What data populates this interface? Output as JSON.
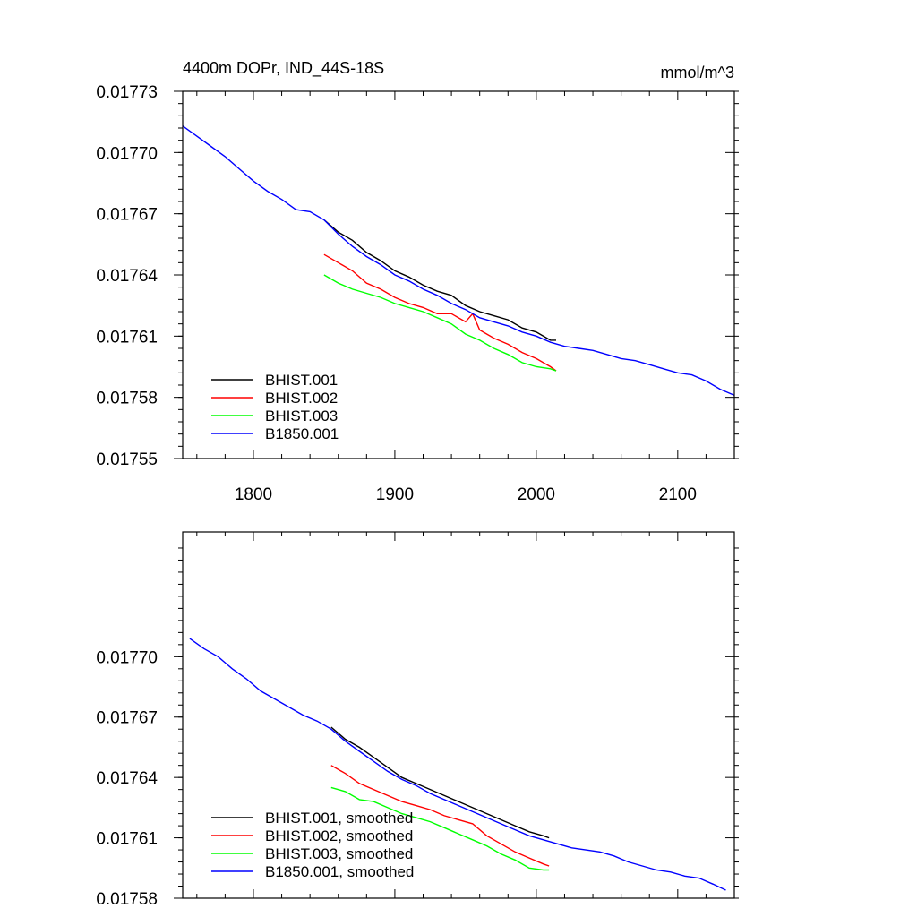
{
  "chart_data": [
    {
      "type": "line",
      "title": "4400m DOPr, IND_44S-18S",
      "units": "mmol/m^3",
      "xlim": [
        1750,
        2140
      ],
      "ylim": [
        0.01755,
        0.01773
      ],
      "xticks": [
        1800,
        1900,
        2000,
        2100
      ],
      "xtick_labels": [
        "1800",
        "1900",
        "2000",
        "2100"
      ],
      "yticks": [
        0.01755,
        0.01758,
        0.01761,
        0.01764,
        0.01767,
        0.0177,
        0.01773
      ],
      "ytick_labels": [
        "0.01755",
        "0.01758",
        "0.01761",
        "0.01764",
        "0.01767",
        "0.01770",
        "0.01773"
      ],
      "grid": false,
      "legend_position": "bottom-left",
      "series": [
        {
          "name": "BHIST.001",
          "color": "#000000",
          "x": [
            1850,
            1860,
            1870,
            1880,
            1890,
            1900,
            1910,
            1920,
            1930,
            1940,
            1950,
            1960,
            1970,
            1980,
            1990,
            2000,
            2010,
            2014
          ],
          "y": [
            0.017667,
            0.017661,
            0.017657,
            0.017651,
            0.017647,
            0.017642,
            0.017639,
            0.017635,
            0.017632,
            0.01763,
            0.017625,
            0.017622,
            0.01762,
            0.017618,
            0.017614,
            0.017612,
            0.017608,
            0.017608
          ]
        },
        {
          "name": "BHIST.002",
          "color": "#ff0000",
          "x": [
            1850,
            1860,
            1870,
            1880,
            1890,
            1900,
            1910,
            1920,
            1930,
            1940,
            1950,
            1955,
            1960,
            1970,
            1980,
            1990,
            2000,
            2010,
            2014
          ],
          "y": [
            0.01765,
            0.017646,
            0.017642,
            0.017636,
            0.017633,
            0.017629,
            0.017626,
            0.017624,
            0.017621,
            0.017621,
            0.017617,
            0.017621,
            0.017613,
            0.017609,
            0.017606,
            0.017602,
            0.017599,
            0.017595,
            0.017593
          ]
        },
        {
          "name": "BHIST.003",
          "color": "#00ff00",
          "x": [
            1850,
            1860,
            1870,
            1880,
            1890,
            1900,
            1910,
            1920,
            1930,
            1940,
            1950,
            1960,
            1970,
            1980,
            1990,
            2000,
            2010,
            2014
          ],
          "y": [
            0.01764,
            0.017636,
            0.017633,
            0.017631,
            0.017629,
            0.017626,
            0.017624,
            0.017622,
            0.017619,
            0.017616,
            0.017611,
            0.017608,
            0.017604,
            0.017601,
            0.017597,
            0.017595,
            0.017594,
            0.017593
          ]
        },
        {
          "name": "B1850.001",
          "color": "#0000ff",
          "x": [
            1750,
            1760,
            1770,
            1780,
            1790,
            1800,
            1810,
            1820,
            1830,
            1840,
            1850,
            1860,
            1870,
            1880,
            1890,
            1900,
            1910,
            1920,
            1930,
            1940,
            1950,
            1960,
            1970,
            1980,
            1990,
            2000,
            2010,
            2020,
            2030,
            2040,
            2050,
            2060,
            2070,
            2080,
            2090,
            2100,
            2110,
            2120,
            2130,
            2140
          ],
          "y": [
            0.017713,
            0.017708,
            0.017703,
            0.017698,
            0.017692,
            0.017686,
            0.017681,
            0.017677,
            0.017672,
            0.017671,
            0.017667,
            0.01766,
            0.017654,
            0.017649,
            0.017645,
            0.01764,
            0.017637,
            0.017633,
            0.01763,
            0.017626,
            0.017623,
            0.017619,
            0.017617,
            0.017615,
            0.017612,
            0.01761,
            0.017607,
            0.017605,
            0.017604,
            0.017603,
            0.017601,
            0.017599,
            0.017598,
            0.017596,
            0.017594,
            0.017592,
            0.017591,
            0.017588,
            0.017584,
            0.017581
          ]
        }
      ]
    },
    {
      "type": "line",
      "xlim": [
        1750,
        2140
      ],
      "ylim": [
        0.01758,
        0.017762
      ],
      "xticks": [
        1800,
        1900,
        2000,
        2100
      ],
      "yticks": [
        0.01758,
        0.01761,
        0.01764,
        0.01767,
        0.0177
      ],
      "ytick_labels": [
        "0.01758",
        "0.01761",
        "0.01764",
        "0.01767",
        "0.01770"
      ],
      "grid": false,
      "legend_position": "bottom-left",
      "series": [
        {
          "name": "BHIST.001, smoothed",
          "color": "#000000",
          "x": [
            1855,
            1865,
            1875,
            1885,
            1895,
            1905,
            1915,
            1925,
            1935,
            1945,
            1955,
            1965,
            1975,
            1985,
            1995,
            2005,
            2009
          ],
          "y": [
            0.017665,
            0.017659,
            0.017655,
            0.01765,
            0.017645,
            0.01764,
            0.017637,
            0.017634,
            0.017631,
            0.017628,
            0.017625,
            0.017622,
            0.017619,
            0.017616,
            0.017613,
            0.017611,
            0.01761
          ]
        },
        {
          "name": "BHIST.002, smoothed",
          "color": "#ff0000",
          "x": [
            1855,
            1865,
            1875,
            1885,
            1895,
            1905,
            1915,
            1925,
            1935,
            1945,
            1955,
            1965,
            1975,
            1985,
            1995,
            2005,
            2009
          ],
          "y": [
            0.017646,
            0.017642,
            0.017637,
            0.017634,
            0.017631,
            0.017628,
            0.017626,
            0.017624,
            0.017621,
            0.017619,
            0.017617,
            0.017611,
            0.017607,
            0.017603,
            0.0176,
            0.017597,
            0.017596
          ]
        },
        {
          "name": "BHIST.003, smoothed",
          "color": "#00ff00",
          "x": [
            1855,
            1865,
            1875,
            1885,
            1895,
            1905,
            1915,
            1925,
            1935,
            1945,
            1955,
            1965,
            1975,
            1985,
            1995,
            2005,
            2009
          ],
          "y": [
            0.017635,
            0.017633,
            0.017629,
            0.017628,
            0.017625,
            0.017622,
            0.01762,
            0.017618,
            0.017615,
            0.017612,
            0.017609,
            0.017606,
            0.017602,
            0.017599,
            0.017595,
            0.017594,
            0.017594
          ]
        },
        {
          "name": "B1850.001, smoothed",
          "color": "#0000ff",
          "x": [
            1755,
            1765,
            1775,
            1785,
            1795,
            1805,
            1815,
            1825,
            1835,
            1845,
            1855,
            1865,
            1875,
            1885,
            1895,
            1905,
            1915,
            1925,
            1935,
            1945,
            1955,
            1965,
            1975,
            1985,
            1995,
            2005,
            2015,
            2025,
            2035,
            2045,
            2055,
            2065,
            2075,
            2085,
            2095,
            2105,
            2115,
            2125,
            2134
          ],
          "y": [
            0.017709,
            0.017704,
            0.0177,
            0.017694,
            0.017689,
            0.017683,
            0.017679,
            0.017675,
            0.017671,
            0.017668,
            0.017664,
            0.017658,
            0.017653,
            0.017648,
            0.017643,
            0.017639,
            0.017636,
            0.017632,
            0.017629,
            0.017626,
            0.017623,
            0.01762,
            0.017617,
            0.017614,
            0.017611,
            0.017609,
            0.017607,
            0.017605,
            0.017604,
            0.017603,
            0.017601,
            0.017598,
            0.017596,
            0.017594,
            0.017593,
            0.017591,
            0.01759,
            0.017587,
            0.017584
          ]
        }
      ]
    }
  ]
}
